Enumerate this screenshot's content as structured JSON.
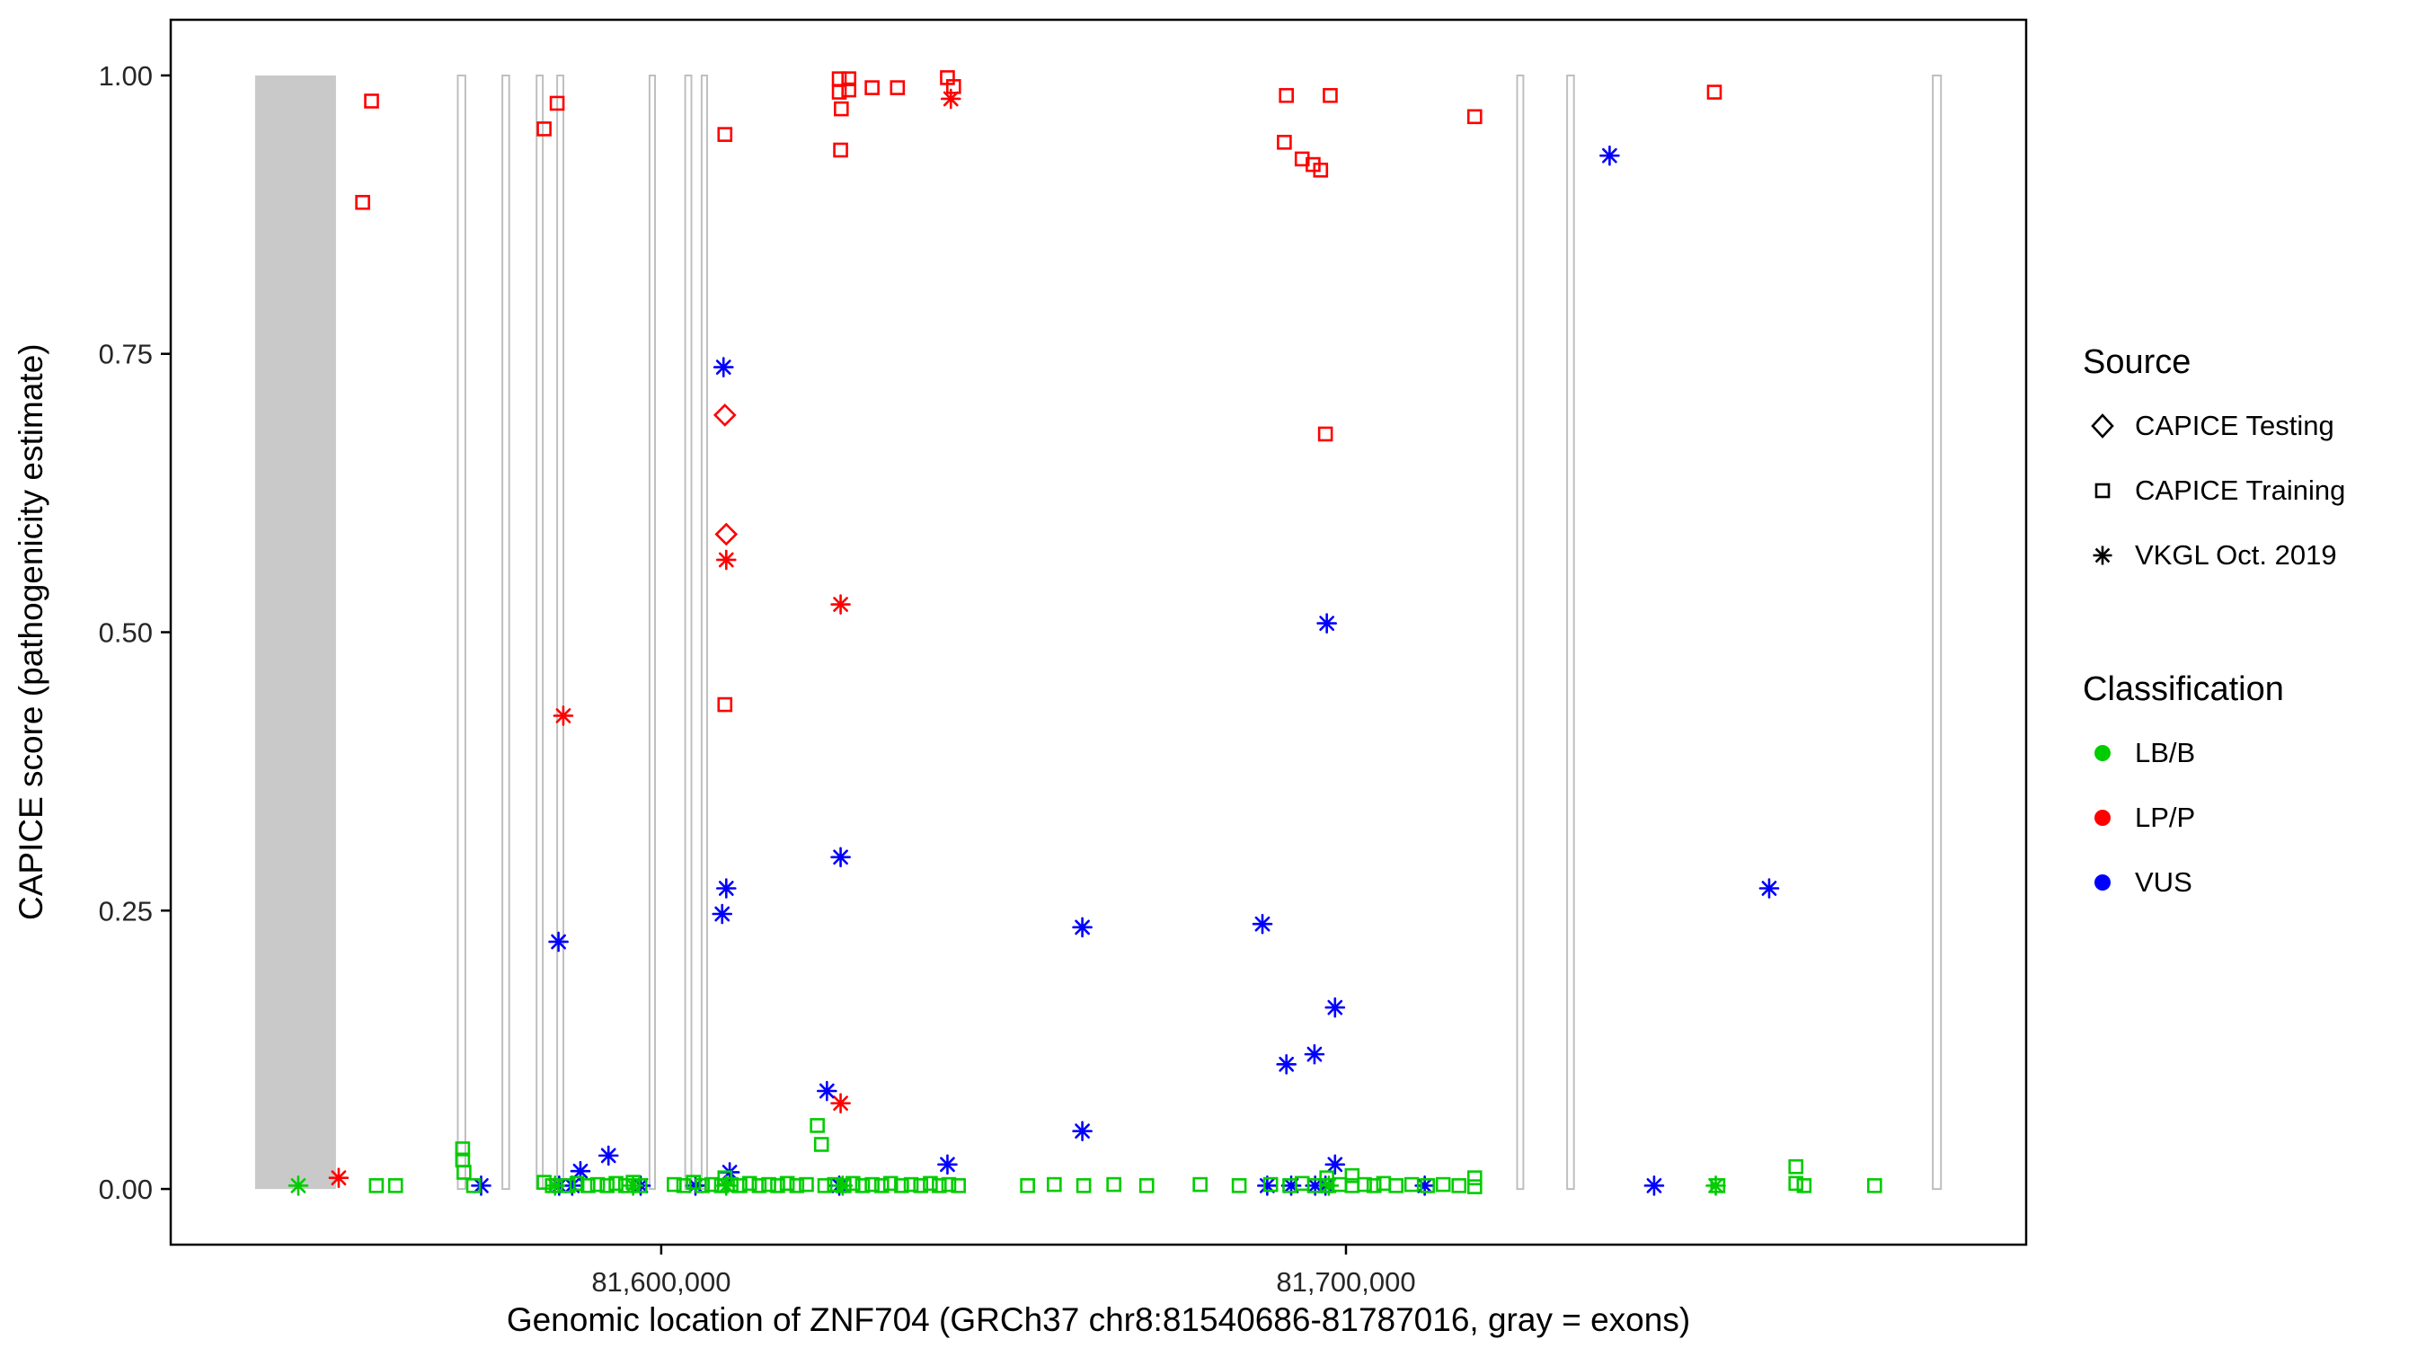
{
  "axes": {
    "x_label": "Genomic location of ZNF704 (GRCh37 chr8:81540686-81787016, gray = exons)",
    "y_label": "CAPICE score (pathogenicity estimate)",
    "x_ticks": [
      {
        "value": 81600000,
        "label": "81,600,000"
      },
      {
        "value": 81700000,
        "label": "81,700,000"
      }
    ],
    "y_ticks": [
      {
        "value": 0.0,
        "label": "0.00"
      },
      {
        "value": 0.25,
        "label": "0.25"
      },
      {
        "value": 0.5,
        "label": "0.50"
      },
      {
        "value": 0.75,
        "label": "0.75"
      },
      {
        "value": 1.0,
        "label": "1.00"
      }
    ]
  },
  "legend": {
    "source": {
      "title": "Source",
      "items": [
        {
          "label": "CAPICE Testing",
          "shape": "diamond"
        },
        {
          "label": "CAPICE Training",
          "shape": "square"
        },
        {
          "label": "VKGL Oct. 2019",
          "shape": "asterisk"
        }
      ]
    },
    "classification": {
      "title": "Classification",
      "items": [
        {
          "label": "LB/B",
          "color": "#00CC00"
        },
        {
          "label": "LP/P",
          "color": "#FF0000"
        },
        {
          "label": "VUS",
          "color": "#0000FF"
        }
      ]
    }
  },
  "chart_data": {
    "type": "scatter",
    "title": "",
    "xlabel": "Genomic location of ZNF704 (GRCh37 chr8:81540686-81787016, gray = exons)",
    "ylabel": "CAPICE score (pathogenicity estimate)",
    "x_domain": [
      81528370,
      81799332
    ],
    "y_domain": [
      -0.05,
      1.05
    ],
    "grid": false,
    "legend_position": "right",
    "exon_fill": "#C9C9C9",
    "exon_outline": "#BFBFBF",
    "exons": [
      {
        "start": 81540686,
        "end": 81552500,
        "style": "fill"
      },
      {
        "start": 81570300,
        "end": 81571400,
        "style": "outline"
      },
      {
        "start": 81576800,
        "end": 81577800,
        "style": "outline"
      },
      {
        "start": 81581800,
        "end": 81582700,
        "style": "outline"
      },
      {
        "start": 81584800,
        "end": 81585700,
        "style": "outline"
      },
      {
        "start": 81598300,
        "end": 81599100,
        "style": "outline"
      },
      {
        "start": 81603500,
        "end": 81604400,
        "style": "outline"
      },
      {
        "start": 81605900,
        "end": 81606700,
        "style": "outline"
      },
      {
        "start": 81725000,
        "end": 81725900,
        "style": "outline"
      },
      {
        "start": 81732300,
        "end": 81733300,
        "style": "outline"
      },
      {
        "start": 81785700,
        "end": 81786900,
        "style": "outline"
      }
    ],
    "series": [
      {
        "name": "CAPICE Training LP/P",
        "source": "CAPICE Training",
        "classification": "LP/P",
        "shape": "square",
        "color": "#FF0000",
        "points": [
          [
            81556400,
            0.886
          ],
          [
            81557700,
            0.977
          ],
          [
            81582900,
            0.952
          ],
          [
            81584800,
            0.975
          ],
          [
            81609300,
            0.947
          ],
          [
            81609300,
            0.435
          ],
          [
            81626000,
            0.997
          ],
          [
            81626000,
            0.985
          ],
          [
            81627400,
            0.997
          ],
          [
            81627400,
            0.987
          ],
          [
            81626300,
            0.97
          ],
          [
            81626200,
            0.933
          ],
          [
            81630800,
            0.989
          ],
          [
            81634500,
            0.989
          ],
          [
            81641800,
            0.998
          ],
          [
            81642700,
            0.99
          ],
          [
            81691300,
            0.982
          ],
          [
            81697700,
            0.982
          ],
          [
            81691000,
            0.94
          ],
          [
            81693600,
            0.925
          ],
          [
            81695200,
            0.92
          ],
          [
            81696300,
            0.915
          ],
          [
            81697000,
            0.678
          ],
          [
            81718800,
            0.963
          ],
          [
            81753800,
            0.985
          ]
        ]
      },
      {
        "name": "CAPICE Testing LP/P",
        "source": "CAPICE Testing",
        "classification": "LP/P",
        "shape": "diamond",
        "color": "#FF0000",
        "points": [
          [
            81609300,
            0.695
          ],
          [
            81609500,
            0.588
          ]
        ]
      },
      {
        "name": "VKGL LP/P",
        "source": "VKGL Oct. 2019",
        "classification": "LP/P",
        "shape": "asterisk",
        "color": "#FF0000",
        "points": [
          [
            81552900,
            0.01
          ],
          [
            81585700,
            0.425
          ],
          [
            81609500,
            0.565
          ],
          [
            81626200,
            0.525
          ],
          [
            81642300,
            0.979
          ],
          [
            81626200,
            0.077
          ]
        ]
      },
      {
        "name": "VKGL VUS",
        "source": "VKGL Oct. 2019",
        "classification": "VUS",
        "shape": "asterisk",
        "color": "#0000FF",
        "points": [
          [
            81609100,
            0.738
          ],
          [
            81609500,
            0.27
          ],
          [
            81608900,
            0.247
          ],
          [
            81585000,
            0.222
          ],
          [
            81626200,
            0.298
          ],
          [
            81661500,
            0.235
          ],
          [
            81661500,
            0.052
          ],
          [
            81687800,
            0.238
          ],
          [
            81697200,
            0.508
          ],
          [
            81698400,
            0.163
          ],
          [
            81691300,
            0.112
          ],
          [
            81695400,
            0.121
          ],
          [
            81738500,
            0.928
          ],
          [
            81761800,
            0.27
          ],
          [
            81624200,
            0.088
          ],
          [
            81641800,
            0.022
          ],
          [
            81592300,
            0.03
          ],
          [
            81588200,
            0.016
          ],
          [
            81698400,
            0.022
          ],
          [
            81573700,
            0.003
          ],
          [
            81585100,
            0.003
          ],
          [
            81587000,
            0.003
          ],
          [
            81597000,
            0.003
          ],
          [
            81605000,
            0.003
          ],
          [
            81610000,
            0.015
          ],
          [
            81626000,
            0.003
          ],
          [
            81688500,
            0.003
          ],
          [
            81692000,
            0.003
          ],
          [
            81695500,
            0.003
          ],
          [
            81697000,
            0.003
          ],
          [
            81711500,
            0.003
          ],
          [
            81745000,
            0.003
          ]
        ]
      },
      {
        "name": "CAPICE Training LB/B",
        "source": "CAPICE Training",
        "classification": "LB/B",
        "shape": "square",
        "color": "#00CC00",
        "points": [
          [
            81558400,
            0.003
          ],
          [
            81561200,
            0.003
          ],
          [
            81571000,
            0.036
          ],
          [
            81571000,
            0.026
          ],
          [
            81571200,
            0.015
          ],
          [
            81572600,
            0.003
          ],
          [
            81582900,
            0.006
          ],
          [
            81584100,
            0.003
          ],
          [
            81586400,
            0.003
          ],
          [
            81587700,
            0.005
          ],
          [
            81589300,
            0.003
          ],
          [
            81590700,
            0.004
          ],
          [
            81592100,
            0.003
          ],
          [
            81593400,
            0.005
          ],
          [
            81594800,
            0.003
          ],
          [
            81595900,
            0.006
          ],
          [
            81596900,
            0.003
          ],
          [
            81601900,
            0.004
          ],
          [
            81603300,
            0.003
          ],
          [
            81604700,
            0.006
          ],
          [
            81606000,
            0.003
          ],
          [
            81607400,
            0.004
          ],
          [
            81608800,
            0.003
          ],
          [
            81609300,
            0.01
          ],
          [
            81610200,
            0.004
          ],
          [
            81611500,
            0.003
          ],
          [
            81612900,
            0.005
          ],
          [
            81614300,
            0.003
          ],
          [
            81615700,
            0.004
          ],
          [
            81617000,
            0.003
          ],
          [
            81618400,
            0.005
          ],
          [
            81619800,
            0.003
          ],
          [
            81621200,
            0.004
          ],
          [
            81622800,
            0.057
          ],
          [
            81623400,
            0.04
          ],
          [
            81623900,
            0.003
          ],
          [
            81625300,
            0.004
          ],
          [
            81626700,
            0.003
          ],
          [
            81628000,
            0.005
          ],
          [
            81629400,
            0.003
          ],
          [
            81630800,
            0.004
          ],
          [
            81632200,
            0.003
          ],
          [
            81633500,
            0.005
          ],
          [
            81635100,
            0.003
          ],
          [
            81636500,
            0.004
          ],
          [
            81637900,
            0.003
          ],
          [
            81639300,
            0.005
          ],
          [
            81640600,
            0.003
          ],
          [
            81642000,
            0.004
          ],
          [
            81643400,
            0.003
          ],
          [
            81653500,
            0.003
          ],
          [
            81657400,
            0.004
          ],
          [
            81661700,
            0.003
          ],
          [
            81666100,
            0.004
          ],
          [
            81670900,
            0.003
          ],
          [
            81678700,
            0.004
          ],
          [
            81684400,
            0.003
          ],
          [
            81689000,
            0.004
          ],
          [
            81691800,
            0.003
          ],
          [
            81693600,
            0.005
          ],
          [
            81695400,
            0.003
          ],
          [
            81697200,
            0.01
          ],
          [
            81697200,
            0.003
          ],
          [
            81699100,
            0.004
          ],
          [
            81700900,
            0.012
          ],
          [
            81700900,
            0.003
          ],
          [
            81702700,
            0.004
          ],
          [
            81704100,
            0.003
          ],
          [
            81705500,
            0.005
          ],
          [
            81707300,
            0.003
          ],
          [
            81709600,
            0.004
          ],
          [
            81711900,
            0.003
          ],
          [
            81714200,
            0.004
          ],
          [
            81716500,
            0.003
          ],
          [
            81718800,
            0.01
          ],
          [
            81718800,
            0.002
          ],
          [
            81754300,
            0.003
          ],
          [
            81765700,
            0.02
          ],
          [
            81765700,
            0.005
          ],
          [
            81766900,
            0.003
          ],
          [
            81777200,
            0.003
          ]
        ]
      },
      {
        "name": "VKGL LB/B",
        "source": "VKGL Oct. 2019",
        "classification": "LB/B",
        "shape": "asterisk",
        "color": "#00CC00",
        "points": [
          [
            81547000,
            0.003
          ],
          [
            81584500,
            0.003
          ],
          [
            81595900,
            0.003
          ],
          [
            81609500,
            0.003
          ],
          [
            81626500,
            0.003
          ],
          [
            81697500,
            0.003
          ],
          [
            81754000,
            0.003
          ]
        ]
      }
    ]
  }
}
